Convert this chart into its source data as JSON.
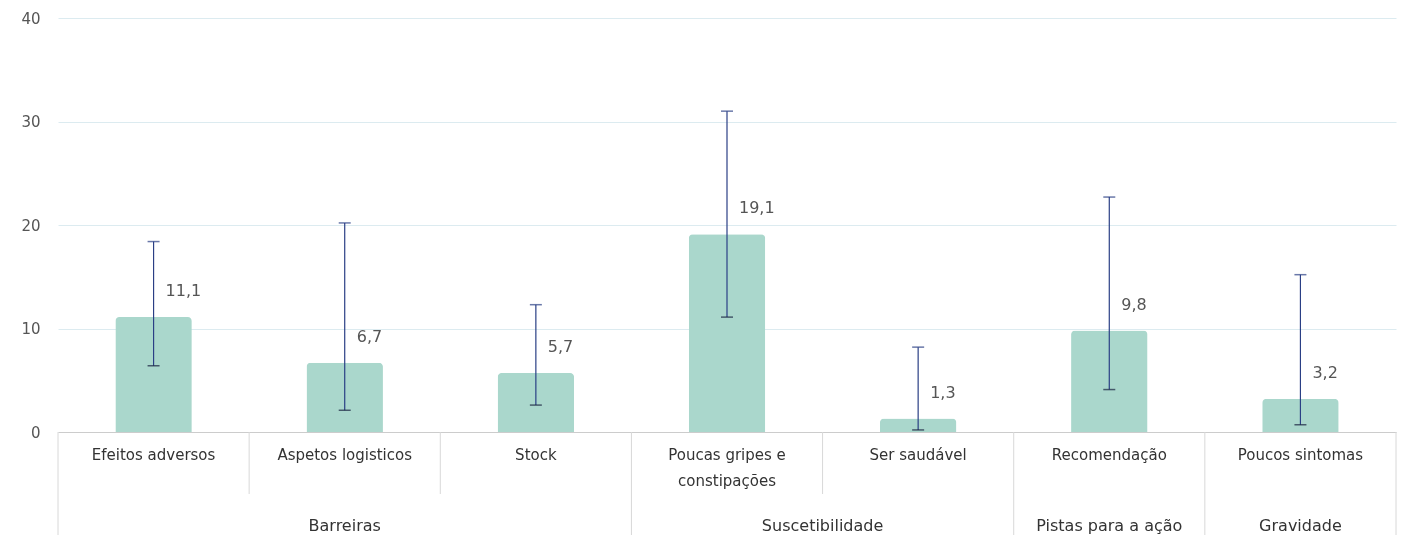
{
  "chart_data": {
    "type": "bar",
    "categories": [
      "Efeitos adversos",
      "Aspetos logisticos",
      "Stock",
      "Poucas gripes e constipações",
      "Ser saudável",
      "Recomendação",
      "Poucos sintomas"
    ],
    "values": [
      11.1,
      6.7,
      5.7,
      19.1,
      1.3,
      9.8,
      3.2
    ],
    "value_labels": [
      "11,1",
      "6,7",
      "5,7",
      "19,1",
      "1,3",
      "9,8",
      "3,2"
    ],
    "color": "#aad7cc",
    "errors": [
      [
        6.4,
        18.4
      ],
      [
        2.1,
        20.2
      ],
      [
        2.6,
        12.3
      ],
      [
        11.1,
        31.0
      ],
      [
        0.2,
        8.2
      ],
      [
        4.1,
        22.7
      ],
      [
        0.7,
        15.2
      ]
    ],
    "ylim": [
      0,
      40
    ],
    "yticks": [
      0,
      10,
      20,
      30,
      40
    ],
    "grid": "y",
    "annotations": [
      "Barreiras",
      "Suscetibilidade",
      "Pistas para a ação",
      "Gravidade"
    ]
  }
}
